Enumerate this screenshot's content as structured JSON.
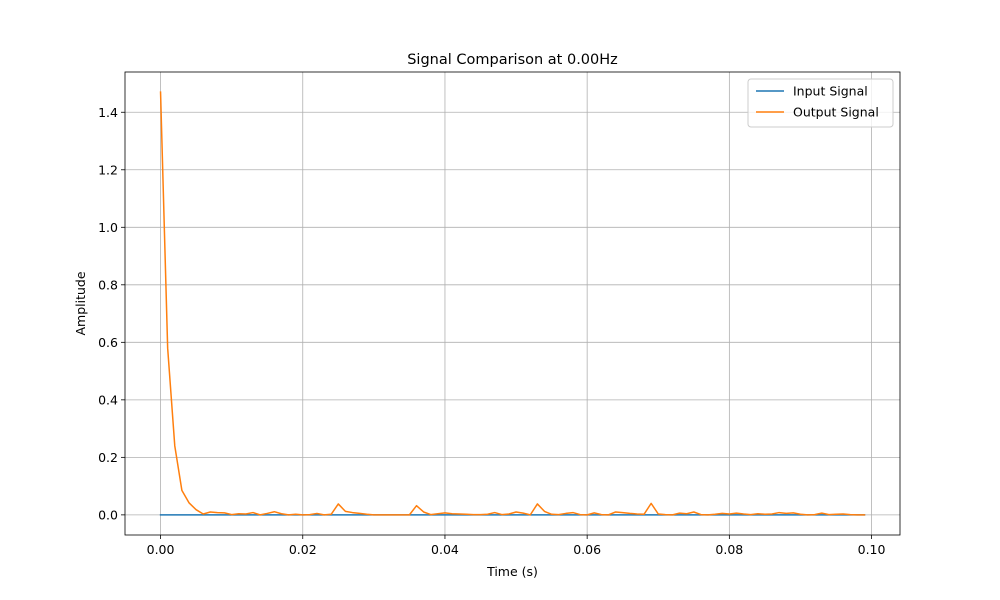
{
  "chart_data": {
    "type": "line",
    "title": "Signal Comparison at 0.00Hz",
    "xlabel": "Time (s)",
    "ylabel": "Amplitude",
    "xlim": [
      -0.005,
      0.104
    ],
    "ylim": [
      -0.07,
      1.54
    ],
    "xticks": [
      0.0,
      0.02,
      0.04,
      0.06,
      0.08,
      0.1
    ],
    "xtick_labels": [
      "0.00",
      "0.02",
      "0.04",
      "0.06",
      "0.08",
      "0.10"
    ],
    "yticks": [
      0.0,
      0.2,
      0.4,
      0.6,
      0.8,
      1.0,
      1.2,
      1.4
    ],
    "ytick_labels": [
      "0.0",
      "0.2",
      "0.4",
      "0.6",
      "0.8",
      "1.0",
      "1.2",
      "1.4"
    ],
    "grid": true,
    "legend_placement": "top-right",
    "series": [
      {
        "name": "Input Signal",
        "color": "#1f77b4",
        "x": [
          0.0,
          0.099
        ],
        "y": [
          0.0,
          0.0
        ]
      },
      {
        "name": "Output Signal",
        "color": "#ff7f0e",
        "x": [
          0.0,
          0.001,
          0.002,
          0.003,
          0.004,
          0.005,
          0.006,
          0.007,
          0.008,
          0.009,
          0.01,
          0.011,
          0.012,
          0.013,
          0.014,
          0.015,
          0.016,
          0.017,
          0.018,
          0.019,
          0.02,
          0.021,
          0.022,
          0.023,
          0.024,
          0.025,
          0.026,
          0.027,
          0.028,
          0.029,
          0.03,
          0.031,
          0.032,
          0.033,
          0.034,
          0.035,
          0.036,
          0.037,
          0.038,
          0.039,
          0.04,
          0.041,
          0.042,
          0.043,
          0.044,
          0.045,
          0.046,
          0.047,
          0.048,
          0.049,
          0.05,
          0.051,
          0.052,
          0.053,
          0.054,
          0.055,
          0.056,
          0.057,
          0.058,
          0.059,
          0.06,
          0.061,
          0.062,
          0.063,
          0.064,
          0.065,
          0.066,
          0.067,
          0.068,
          0.069,
          0.07,
          0.071,
          0.072,
          0.073,
          0.074,
          0.075,
          0.076,
          0.077,
          0.078,
          0.079,
          0.08,
          0.081,
          0.082,
          0.083,
          0.084,
          0.085,
          0.086,
          0.087,
          0.088,
          0.089,
          0.09,
          0.091,
          0.092,
          0.093,
          0.094,
          0.095,
          0.096,
          0.097,
          0.098,
          0.099
        ],
        "y": [
          1.47,
          0.58,
          0.24,
          0.085,
          0.042,
          0.018,
          0.003,
          0.01,
          0.008,
          0.007,
          0.001,
          0.004,
          0.003,
          0.008,
          0.0,
          0.005,
          0.011,
          0.004,
          0.0,
          0.002,
          0.0,
          0.001,
          0.005,
          0.0,
          0.002,
          0.038,
          0.012,
          0.008,
          0.005,
          0.002,
          0.0,
          0.0,
          0.0,
          0.0,
          0.0,
          0.0,
          0.032,
          0.01,
          0.001,
          0.004,
          0.007,
          0.004,
          0.003,
          0.002,
          0.001,
          0.001,
          0.002,
          0.008,
          0.001,
          0.003,
          0.01,
          0.006,
          0.0,
          0.038,
          0.012,
          0.002,
          0.001,
          0.005,
          0.008,
          0.001,
          0.0,
          0.007,
          0.001,
          0.0,
          0.01,
          0.008,
          0.005,
          0.003,
          0.002,
          0.04,
          0.003,
          0.001,
          0.0,
          0.006,
          0.004,
          0.01,
          0.001,
          0.0,
          0.002,
          0.005,
          0.003,
          0.006,
          0.003,
          0.001,
          0.004,
          0.002,
          0.003,
          0.008,
          0.005,
          0.007,
          0.002,
          0.0,
          0.001,
          0.006,
          0.001,
          0.002,
          0.003,
          0.001,
          0.0,
          0.0
        ]
      }
    ]
  }
}
